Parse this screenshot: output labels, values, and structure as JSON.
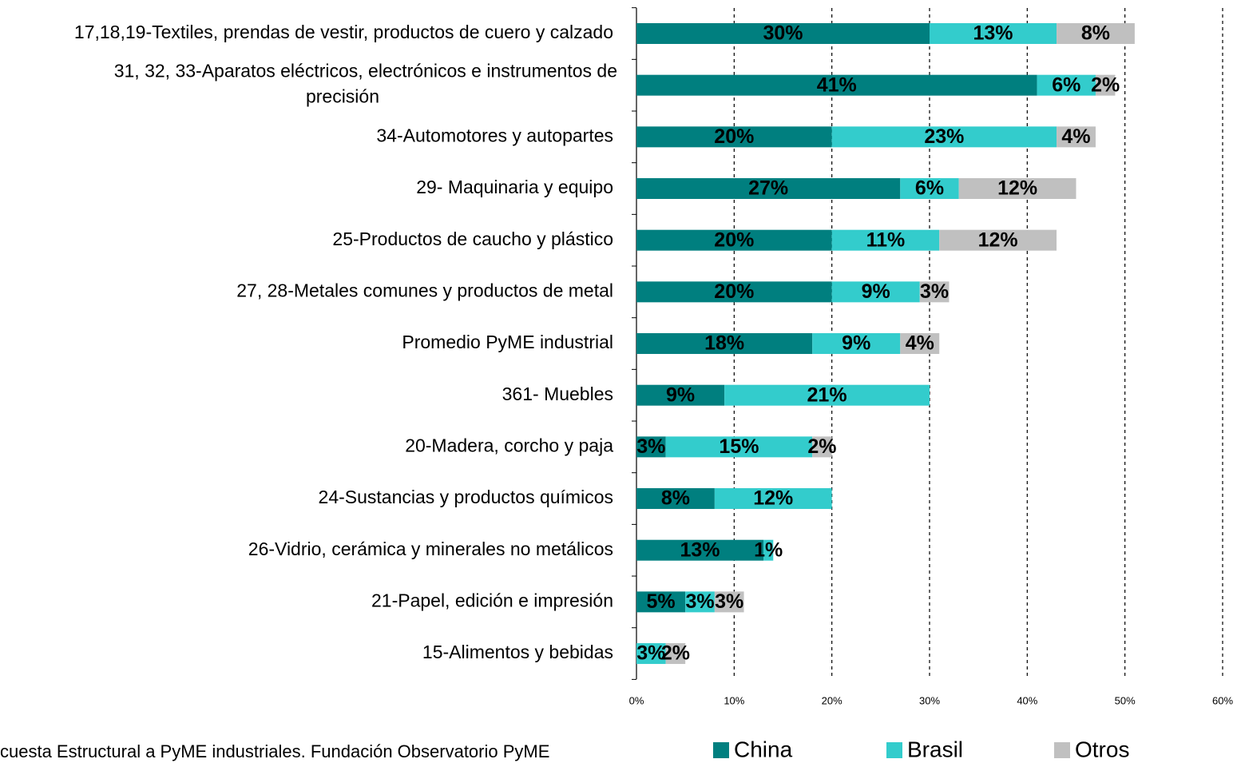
{
  "chart_data": {
    "type": "stacked-bar-horizontal",
    "categories": [
      "17,18,19-Textiles, prendas de vestir, productos de cuero y calzado",
      "31, 32, 33-Aparatos eléctricos, electrónicos e instrumentos de\nprecisión",
      "34-Automotores y autopartes",
      "29- Maquinaria y equipo",
      "25-Productos de caucho y plástico",
      "27, 28-Metales comunes y productos de metal",
      "Promedio PyME industrial",
      "361- Muebles",
      "20-Madera, corcho y paja",
      "24-Sustancias y productos químicos",
      "26-Vidrio, cerámica y minerales no metálicos",
      "21-Papel, edición e impresión",
      "15-Alimentos y bebidas"
    ],
    "series": [
      {
        "name": "China",
        "color": "#007f7f",
        "values": [
          30,
          41,
          20,
          27,
          20,
          20,
          18,
          9,
          3,
          8,
          13,
          5,
          null
        ],
        "value_labels": [
          "30%",
          "41%",
          "20%",
          "27%",
          "20%",
          "20%",
          "18%",
          "9%",
          "3%",
          "8%",
          "13%",
          "5%",
          null
        ]
      },
      {
        "name": "Brasil",
        "color": "#33cccc",
        "values": [
          13,
          6,
          23,
          6,
          11,
          9,
          9,
          21,
          15,
          12,
          1,
          3,
          3
        ],
        "value_labels": [
          "13%",
          "6%",
          "23%",
          "6%",
          "11%",
          "9%",
          "9%",
          "21%",
          "15%",
          "12%",
          "1%",
          "3%",
          "3%"
        ]
      },
      {
        "name": "Otros",
        "color": "#c0c0c0",
        "values": [
          8,
          2,
          4,
          12,
          12,
          3,
          4,
          null,
          2,
          null,
          null,
          3,
          2
        ],
        "value_labels": [
          "8%",
          "2%",
          "4%",
          "12%",
          "12%",
          "3%",
          "4%",
          null,
          "2%",
          null,
          null,
          "3%",
          "2%"
        ]
      }
    ],
    "xlim": [
      0,
      60
    ],
    "xticks": [
      {
        "value": 0,
        "label": "0%"
      },
      {
        "value": 10,
        "label": "10%"
      },
      {
        "value": 20,
        "label": "20%"
      },
      {
        "value": 30,
        "label": "30%"
      },
      {
        "value": 40,
        "label": "40%"
      },
      {
        "value": 50,
        "label": "50%"
      },
      {
        "value": 60,
        "label": "60%"
      }
    ],
    "grid": true,
    "legend": "bottom",
    "source": "cuesta Estructural a PyME industriales. Fundación Observatorio PyME"
  }
}
